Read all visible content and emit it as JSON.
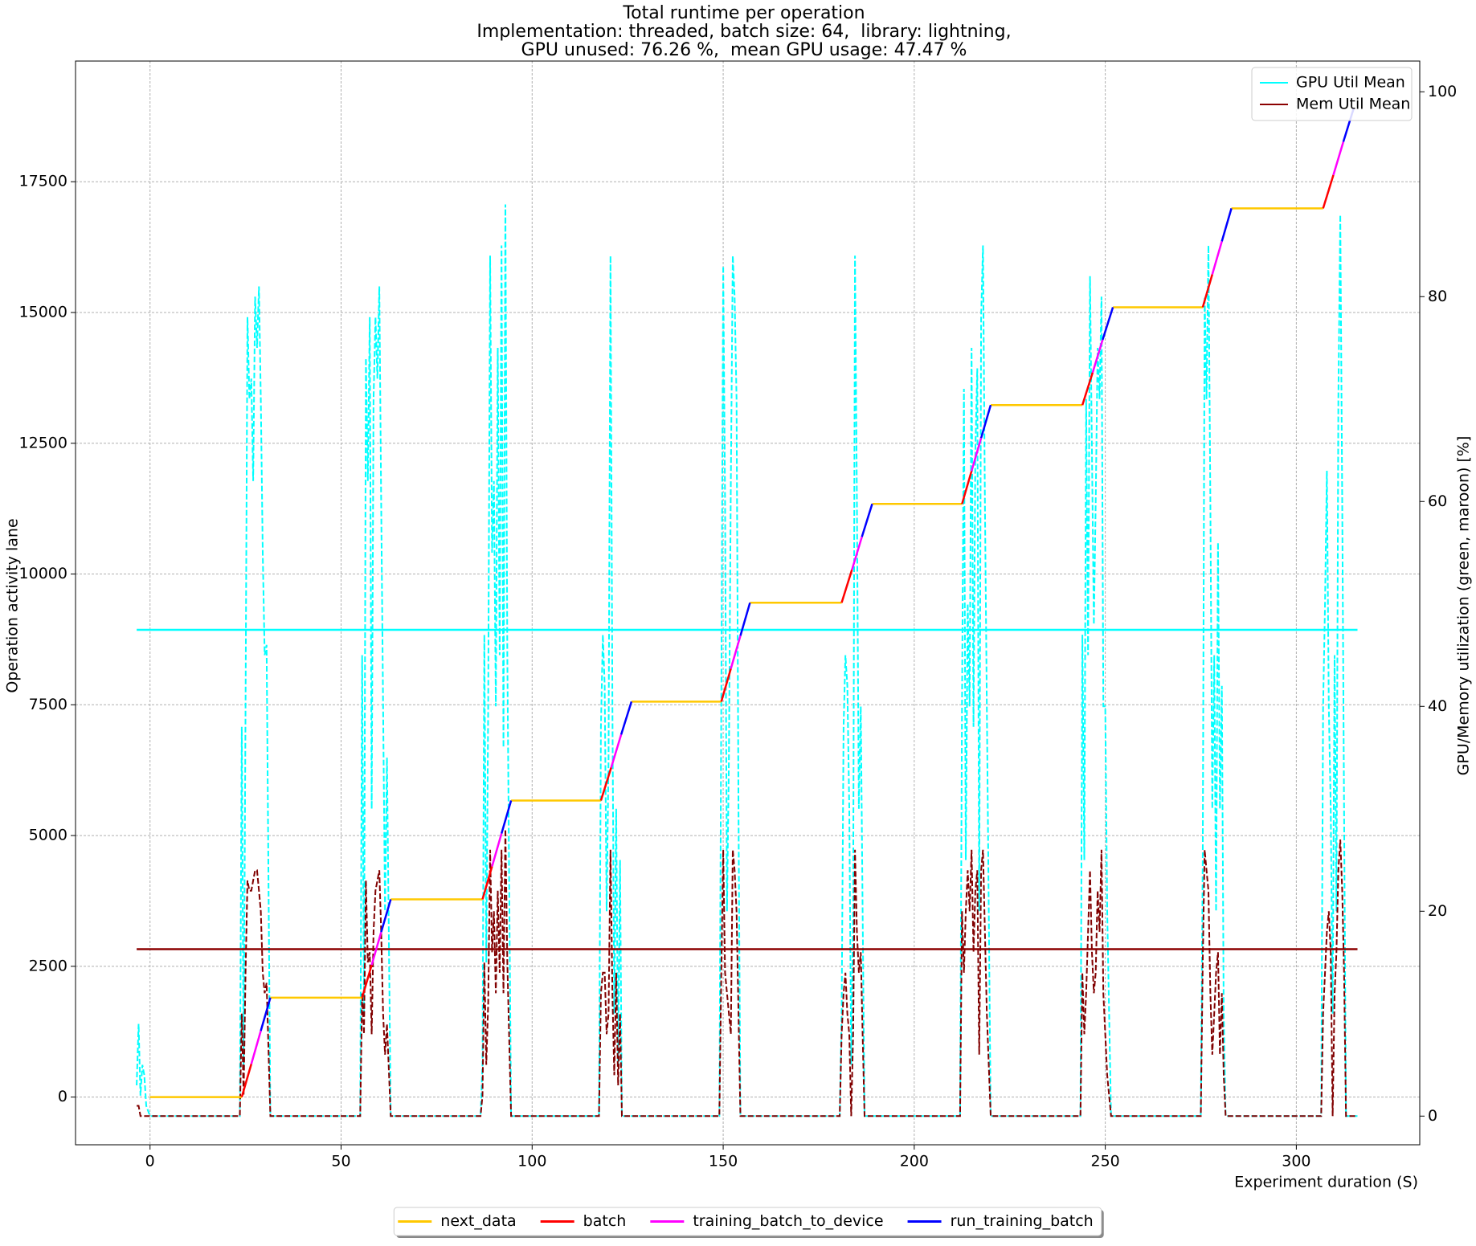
{
  "chart_data": {
    "type": "line",
    "title": "Total runtime per operation",
    "subtitle": [
      "Implementation: threaded, batch size: 64,  library: lightning,",
      "GPU unused: 76.26 %,  mean GPU usage: 47.47 %"
    ],
    "xlabel": "Experiment duration (S)",
    "ylabel": "Operation activity lane",
    "y2label": "GPU/Memory utilization (green, maroon) [%]",
    "xlim": [
      -19.5,
      332.3
    ],
    "ylim": [
      -912,
      19807
    ],
    "y2lim": [
      -2.8,
      103
    ],
    "xticks": [
      0,
      50,
      100,
      150,
      200,
      250,
      300
    ],
    "yticks": [
      0,
      2500,
      5000,
      7500,
      10000,
      12500,
      15000,
      17500
    ],
    "y2ticks": [
      0,
      20,
      40,
      60,
      80,
      100
    ],
    "grid": true,
    "series": [
      {
        "color": "#00ffff",
        "axis": "y2",
        "dash": true,
        "x": [
          -3.5,
          -3,
          -2.5,
          -2,
          -1.5,
          -1,
          0,
          23.5,
          24,
          24.5,
          25,
          25.5,
          26,
          26.5,
          27,
          27.5,
          28,
          28.5,
          29,
          29.5,
          30,
          30.5,
          31.5,
          55,
          55.5,
          56,
          56.5,
          57,
          57.5,
          58,
          58.5,
          59,
          59.5,
          60,
          60.5,
          61,
          61.5,
          62,
          63,
          86.5,
          87,
          87.5,
          88,
          88.5,
          89,
          89.5,
          90,
          90.5,
          91,
          91.5,
          92,
          92.5,
          93,
          93.5,
          94.5,
          117.5,
          118,
          118.5,
          119,
          119.5,
          120,
          120.5,
          121,
          121.5,
          122,
          122.5,
          123,
          123.5,
          124,
          124.5,
          125.5,
          149,
          149.5,
          150,
          150.5,
          151,
          151.5,
          152,
          152.5,
          153,
          153.5,
          154,
          154.5,
          155,
          155.5,
          156,
          157,
          180.5,
          181,
          181.5,
          182,
          182.5,
          183,
          183.5,
          184,
          184.5,
          185,
          185.5,
          186,
          186.5,
          187,
          187.5,
          188.5,
          212,
          212.5,
          213,
          213.5,
          214,
          214.5,
          215,
          215.5,
          216,
          216.5,
          217,
          217.5,
          218,
          218.5,
          219,
          220,
          243.5,
          244,
          244.5,
          245,
          245.5,
          246,
          246.5,
          247,
          247.5,
          248,
          248.5,
          249,
          249.5,
          250,
          250.5,
          251.5,
          275,
          275.5,
          276,
          276.5,
          277,
          277.5,
          278,
          278.5,
          279,
          279.5,
          280,
          280.5,
          281,
          281.5,
          282,
          283,
          306.5,
          307,
          307.5,
          308,
          308.5,
          309,
          309.5,
          310,
          310.5,
          311,
          311.5,
          312,
          312.5,
          313,
          313.5,
          314.5,
          316
        ],
        "values": [
          3,
          9,
          2,
          5,
          4,
          1,
          0,
          0,
          38,
          5,
          40,
          78,
          70,
          72,
          62,
          80,
          75,
          81,
          70,
          55,
          45,
          46,
          0,
          0,
          45,
          10,
          74,
          62,
          78,
          30,
          70,
          78,
          72,
          81,
          60,
          40,
          20,
          35,
          0,
          0,
          5,
          47,
          15,
          40,
          84,
          55,
          62,
          40,
          75,
          45,
          85,
          36,
          89,
          45,
          0,
          0,
          38,
          47,
          42,
          20,
          35,
          84,
          40,
          10,
          30,
          5,
          25,
          0,
          0,
          0,
          0,
          0,
          40,
          83,
          60,
          20,
          35,
          62,
          84,
          80,
          70,
          30,
          0,
          0,
          0,
          0,
          0,
          0,
          10,
          38,
          45,
          42,
          30,
          5,
          20,
          84,
          60,
          30,
          40,
          20,
          0,
          0,
          0,
          0,
          40,
          71,
          25,
          50,
          40,
          75,
          38,
          65,
          73,
          20,
          78,
          85,
          60,
          40,
          0,
          0,
          47,
          25,
          70,
          45,
          82,
          65,
          48,
          60,
          75,
          70,
          80,
          40,
          40,
          20,
          0,
          0,
          25,
          80,
          70,
          85,
          60,
          30,
          45,
          20,
          56,
          30,
          42,
          10,
          0,
          0,
          0,
          0,
          40,
          50,
          63,
          40,
          30,
          10,
          45,
          20,
          70,
          88,
          60,
          30,
          0,
          0,
          0,
          0
        ]
      },
      {
        "color": "#800000",
        "axis": "y2",
        "dash": true,
        "x": [
          -3.5,
          -3,
          -2.5,
          -2,
          -1.5,
          -1,
          0,
          23.5,
          24,
          24.5,
          25,
          25.5,
          26,
          26.5,
          27,
          27.5,
          28,
          28.5,
          29,
          29.5,
          30,
          30.5,
          31.5,
          55,
          55.5,
          56,
          56.5,
          57,
          57.5,
          58,
          58.5,
          59,
          59.5,
          60,
          60.5,
          61,
          61.5,
          62,
          63,
          86.5,
          87,
          87.5,
          88,
          88.5,
          89,
          89.5,
          90,
          90.5,
          91,
          91.5,
          92,
          92.5,
          93,
          93.5,
          94.5,
          117.5,
          118,
          118.5,
          119,
          119.5,
          120,
          120.5,
          121,
          121.5,
          122,
          122.5,
          123,
          123.5,
          124,
          124.5,
          125.5,
          149,
          149.5,
          150,
          150.5,
          151,
          151.5,
          152,
          152.5,
          153,
          153.5,
          154,
          154.5,
          155,
          155.5,
          156,
          157,
          180.5,
          181,
          181.5,
          182,
          182.5,
          183,
          183.5,
          184,
          184.5,
          185,
          185.5,
          186,
          186.5,
          187,
          187.5,
          188.5,
          212,
          212.5,
          213,
          213.5,
          214,
          214.5,
          215,
          215.5,
          216,
          216.5,
          217,
          217.5,
          218,
          218.5,
          219,
          220,
          243.5,
          244,
          244.5,
          245,
          245.5,
          246,
          246.5,
          247,
          247.5,
          248,
          248.5,
          249,
          249.5,
          250,
          250.5,
          251.5,
          275,
          275.5,
          276,
          276.5,
          277,
          277.5,
          278,
          278.5,
          279,
          279.5,
          280,
          280.5,
          281,
          281.5,
          282,
          283,
          306.5,
          307,
          307.5,
          308,
          308.5,
          309,
          309.5,
          310,
          310.5,
          311,
          311.5,
          312,
          312.5,
          313,
          313.5,
          314.5,
          316
        ],
        "values": [
          1,
          1,
          0,
          0,
          0,
          0,
          0,
          0,
          10,
          2,
          14,
          23,
          22,
          22,
          23,
          24,
          24,
          22,
          20,
          14,
          12,
          13,
          0,
          0,
          12,
          8,
          23,
          15,
          16,
          8,
          18,
          22,
          23,
          24,
          18,
          10,
          6,
          9,
          0,
          0,
          2,
          15,
          5,
          11,
          26,
          16,
          20,
          12,
          22,
          14,
          26,
          12,
          28,
          15,
          0,
          0,
          12,
          14,
          14,
          8,
          10,
          26,
          12,
          4,
          14,
          3,
          10,
          0,
          0,
          0,
          0,
          0,
          14,
          26,
          14,
          12,
          10,
          8,
          26,
          24,
          20,
          10,
          0,
          0,
          0,
          0,
          0,
          0,
          8,
          12,
          14,
          10,
          8,
          0,
          8,
          26,
          18,
          14,
          16,
          8,
          0,
          0,
          0,
          0,
          20,
          14,
          20,
          24,
          20,
          26,
          16,
          22,
          24,
          6,
          24,
          26,
          18,
          10,
          0,
          0,
          14,
          8,
          12,
          18,
          24,
          16,
          12,
          14,
          22,
          18,
          26,
          12,
          8,
          4,
          0,
          0,
          15,
          26,
          24,
          22,
          12,
          6,
          10,
          14,
          16,
          6,
          12,
          4,
          0,
          0,
          0,
          0,
          10,
          14,
          18,
          20,
          16,
          0,
          12,
          16,
          24,
          27,
          22,
          14,
          0,
          0,
          0,
          0
        ]
      },
      {
        "name": "GPU Util Mean",
        "color": "#00ffff",
        "axis": "y2",
        "legend": "upper right",
        "x": [
          -3.5,
          316
        ],
        "values": [
          47.47,
          47.47
        ]
      },
      {
        "name": "Mem Util Mean",
        "color": "#8b0000",
        "axis": "y2",
        "legend": "upper right",
        "x": [
          -3.5,
          316
        ],
        "values": [
          16.3,
          16.3
        ]
      },
      {
        "name": "next_data",
        "color": "#ffc800",
        "legend": "lower center",
        "x": [
          0,
          24,
          null,
          31.5,
          55.5,
          null,
          63,
          87,
          null,
          94.5,
          118,
          null,
          126,
          149.5,
          null,
          157,
          181,
          null,
          189,
          212.5,
          null,
          220,
          244,
          null,
          252,
          275.5,
          null,
          283,
          307
        ],
        "values": [
          0,
          0,
          null,
          1900,
          1900,
          null,
          3780,
          3780,
          null,
          5670,
          5670,
          null,
          7560,
          7560,
          null,
          9450,
          9450,
          null,
          11340,
          11340,
          null,
          13230,
          13230,
          null,
          15100,
          15100,
          null,
          16990,
          16990
        ]
      },
      {
        "name": "batch",
        "color": "#ff0000",
        "legend": "lower center",
        "x": [
          24,
          26.5,
          null,
          55.5,
          58,
          null,
          87,
          89.5,
          null,
          118,
          120.7,
          null,
          149.5,
          152,
          null,
          181,
          183.7,
          null,
          212.5,
          215,
          null,
          244,
          246.7,
          null,
          275.5,
          278,
          null,
          307,
          309.7
        ],
        "values": [
          0,
          633,
          null,
          1900,
          2527,
          null,
          3780,
          4410,
          null,
          5670,
          6300,
          null,
          7560,
          8190,
          null,
          9450,
          10080,
          null,
          11340,
          11970,
          null,
          13230,
          13853,
          null,
          15100,
          15730,
          null,
          16990,
          17627
        ]
      },
      {
        "name": "training_batch_to_device",
        "color": "#ff00ff",
        "legend": "lower center",
        "x": [
          26.5,
          29,
          null,
          58,
          60.5,
          null,
          89.5,
          92,
          null,
          120.7,
          123.3,
          null,
          152,
          154.5,
          null,
          183.7,
          186.3,
          null,
          215,
          217.5,
          null,
          246.7,
          249.3,
          null,
          278,
          280.5,
          null,
          309.7,
          312.3
        ],
        "values": [
          633,
          1267,
          null,
          2527,
          3153,
          null,
          4410,
          5040,
          null,
          6300,
          6930,
          null,
          8190,
          8820,
          null,
          10080,
          10710,
          null,
          11970,
          12600,
          null,
          13853,
          14477,
          null,
          15730,
          16360,
          null,
          17627,
          18263
        ]
      },
      {
        "name": "run_training_batch",
        "color": "#0000ff",
        "legend": "lower center",
        "x": [
          29,
          31.5,
          null,
          60.5,
          63,
          null,
          92,
          94.5,
          null,
          123.3,
          126,
          null,
          154.5,
          157,
          null,
          186.3,
          189,
          null,
          217.5,
          220,
          null,
          249.3,
          252,
          null,
          280.5,
          283,
          null,
          312.3,
          315
        ],
        "values": [
          1267,
          1900,
          null,
          3153,
          3780,
          null,
          5040,
          5670,
          null,
          6930,
          7560,
          null,
          8820,
          9450,
          null,
          10710,
          11340,
          null,
          12600,
          13230,
          null,
          14477,
          15100,
          null,
          16360,
          16990,
          null,
          18263,
          18900
        ]
      }
    ]
  }
}
